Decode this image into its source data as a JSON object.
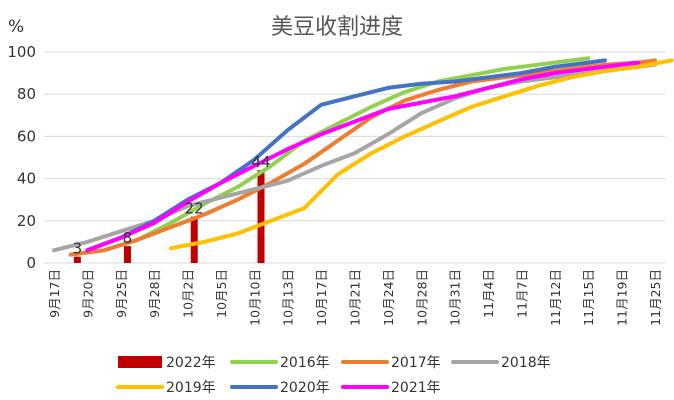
{
  "chart_data": {
    "type": "line",
    "title": "美豆收割进度",
    "unit_label": "%",
    "ylim": [
      0,
      100
    ],
    "yticks": [
      0,
      20,
      40,
      60,
      80,
      100
    ],
    "grid": "horizontal",
    "legend_position": "bottom",
    "categories": [
      "9月17日",
      "9月20日",
      "9月25日",
      "9月28日",
      "10月2日",
      "10月5日",
      "10月10日",
      "10月13日",
      "10月17日",
      "10月21日",
      "10月24日",
      "10月28日",
      "10月31日",
      "11月4日",
      "11月7日",
      "11月12日",
      "11月15日",
      "11月19日",
      "11月25日"
    ],
    "bar_series": {
      "name": "2022年",
      "color": "#C00000",
      "points": [
        {
          "x": 0.7,
          "y": 3,
          "label": "3"
        },
        {
          "x": 2.2,
          "y": 8,
          "label": "8"
        },
        {
          "x": 4.2,
          "y": 22,
          "label": "22"
        },
        {
          "x": 6.2,
          "y": 44,
          "label": "44"
        }
      ]
    },
    "series": [
      {
        "name": "2016年",
        "color": "#92D050",
        "points": [
          [
            1.5,
            6
          ],
          [
            2.5,
            11
          ],
          [
            3.5,
            19
          ],
          [
            4.5,
            28
          ],
          [
            5.5,
            36
          ],
          [
            6.5,
            46
          ],
          [
            7.5,
            58
          ],
          [
            8.5,
            66
          ],
          [
            9.5,
            74
          ],
          [
            10.5,
            81
          ],
          [
            11.5,
            86
          ],
          [
            12.5,
            89
          ],
          [
            13.5,
            92
          ],
          [
            14.5,
            94
          ],
          [
            15.5,
            96
          ],
          [
            16,
            97
          ]
        ]
      },
      {
        "name": "2017年",
        "color": "#ED7D31",
        "points": [
          [
            0.5,
            4
          ],
          [
            1.5,
            6
          ],
          [
            2.5,
            11
          ],
          [
            3.5,
            17
          ],
          [
            4.5,
            23
          ],
          [
            5.5,
            30
          ],
          [
            6.5,
            38
          ],
          [
            7.5,
            47
          ],
          [
            8.5,
            58
          ],
          [
            9.5,
            69
          ],
          [
            10.5,
            77
          ],
          [
            11.5,
            82
          ],
          [
            12.5,
            86
          ],
          [
            13.5,
            88
          ],
          [
            14.5,
            90
          ],
          [
            15.5,
            92
          ],
          [
            16.5,
            94
          ],
          [
            17.5,
            95
          ],
          [
            18,
            96
          ]
        ]
      },
      {
        "name": "2018年",
        "color": "#A5A5A5",
        "points": [
          [
            0,
            6
          ],
          [
            1,
            10
          ],
          [
            2,
            15
          ],
          [
            3,
            20
          ],
          [
            4,
            27
          ],
          [
            5,
            31
          ],
          [
            6,
            35
          ],
          [
            7,
            39
          ],
          [
            8,
            46
          ],
          [
            9,
            52
          ],
          [
            10,
            61
          ],
          [
            11,
            71
          ],
          [
            12,
            78
          ],
          [
            13,
            83
          ],
          [
            14,
            86
          ],
          [
            15,
            88
          ],
          [
            16,
            90
          ],
          [
            17,
            92
          ],
          [
            18,
            94
          ]
        ]
      },
      {
        "name": "2019年",
        "color": "#FFC000",
        "points": [
          [
            3.5,
            7
          ],
          [
            4.5,
            10
          ],
          [
            5.5,
            14
          ],
          [
            6.5,
            20
          ],
          [
            7.5,
            26
          ],
          [
            8.5,
            42
          ],
          [
            9.5,
            52
          ],
          [
            10.5,
            60
          ],
          [
            11.5,
            67
          ],
          [
            12.5,
            74
          ],
          [
            13.5,
            79
          ],
          [
            14.5,
            84
          ],
          [
            15.5,
            88
          ],
          [
            16.5,
            91
          ],
          [
            17.5,
            93
          ],
          [
            18.5,
            96
          ]
        ]
      },
      {
        "name": "2020年",
        "color": "#4472C4",
        "points": [
          [
            1,
            6
          ],
          [
            2,
            12
          ],
          [
            3,
            20
          ],
          [
            4,
            30
          ],
          [
            5,
            38
          ],
          [
            6,
            49
          ],
          [
            7,
            63
          ],
          [
            8,
            75
          ],
          [
            9,
            79
          ],
          [
            10,
            83
          ],
          [
            11,
            85
          ],
          [
            12,
            86
          ],
          [
            13,
            88
          ],
          [
            14,
            90
          ],
          [
            15,
            93
          ],
          [
            16,
            95
          ],
          [
            16.5,
            96
          ]
        ]
      },
      {
        "name": "2021年",
        "color": "#FF00FF",
        "points": [
          [
            1,
            6
          ],
          [
            2,
            12
          ],
          [
            3,
            19
          ],
          [
            4,
            29
          ],
          [
            5,
            38
          ],
          [
            6,
            46
          ],
          [
            7,
            54
          ],
          [
            8,
            61
          ],
          [
            9,
            67
          ],
          [
            10,
            73
          ],
          [
            11,
            76
          ],
          [
            12,
            79
          ],
          [
            13,
            83
          ],
          [
            14,
            87
          ],
          [
            15,
            90
          ],
          [
            16,
            92
          ],
          [
            17,
            94
          ],
          [
            17.5,
            95
          ]
        ]
      }
    ]
  }
}
